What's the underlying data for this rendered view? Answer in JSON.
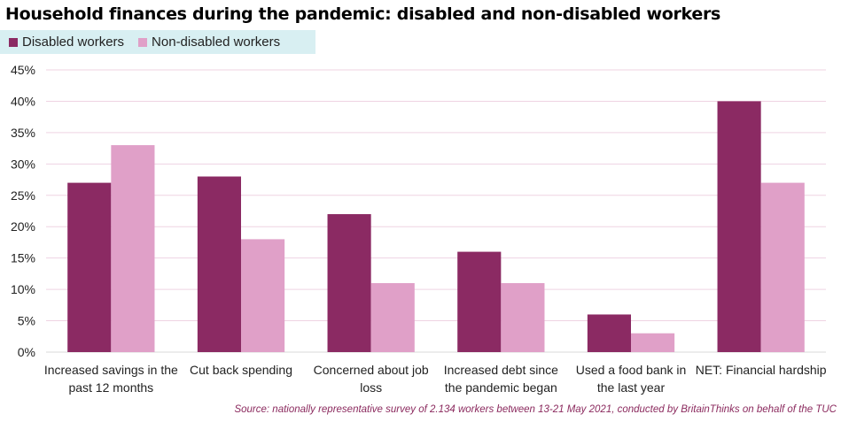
{
  "title": "Household finances during the pandemic: disabled and non-disabled workers",
  "source": "Source: nationally representative survey of 2.134 workers between 13-21 May 2021, conducted by BritainThinks on behalf of the TUC",
  "colors": {
    "disabled": "#8b2a63",
    "non_disabled": "#e0a0c8",
    "grid": "#efd3e2",
    "legend_bg": "#d8eff2"
  },
  "chart_data": {
    "type": "bar",
    "categories": [
      [
        "Increased savings in the",
        "past 12 months"
      ],
      [
        "Cut back spending"
      ],
      [
        "Concerned about job",
        "loss"
      ],
      [
        "Increased debt since",
        "the pandemic began"
      ],
      [
        "Used a food bank in",
        "the last year"
      ],
      [
        "NET: Financial hardship"
      ]
    ],
    "series": [
      {
        "name": "Disabled workers",
        "values": [
          27,
          28,
          22,
          16,
          6,
          40
        ]
      },
      {
        "name": "Non-disabled workers",
        "values": [
          33,
          18,
          11,
          11,
          3,
          27
        ]
      }
    ],
    "ylim": [
      0,
      45
    ],
    "yticks": [
      "0%",
      "5%",
      "10%",
      "15%",
      "20%",
      "25%",
      "30%",
      "35%",
      "40%",
      "45%"
    ],
    "grid": true,
    "legend": "top-left"
  }
}
